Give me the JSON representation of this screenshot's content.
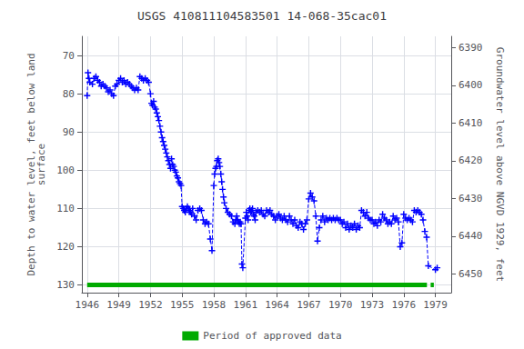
{
  "chart_data": {
    "type": "line",
    "title": "USGS 410811104583501 14-068-35cac01",
    "y_label": "Depth to water level, feet below land\nsurface",
    "y2_label": "Groundwater level above NGVD 1929, feet",
    "xlim": [
      1945.5,
      1980.5
    ],
    "xticks": [
      1946,
      1949,
      1952,
      1955,
      1958,
      1961,
      1964,
      1967,
      1970,
      1973,
      1976,
      1979
    ],
    "ylim": [
      132,
      65
    ],
    "yticks": [
      70,
      80,
      90,
      100,
      110,
      120,
      130
    ],
    "y2lim": [
      6455,
      6387
    ],
    "y2ticks": [
      6390,
      6400,
      6410,
      6420,
      6430,
      6440,
      6450
    ],
    "grid": true,
    "legend": "bottom",
    "series": [
      {
        "color": "#0000ff",
        "marker": "+",
        "line_style": "dashed",
        "x": [
          1946.0,
          1946.08,
          1946.17,
          1946.25,
          1946.5,
          1946.67,
          1946.83,
          1947.0,
          1947.17,
          1947.33,
          1947.5,
          1947.67,
          1947.83,
          1948.0,
          1948.17,
          1948.33,
          1948.5,
          1948.67,
          1948.83,
          1949.0,
          1949.17,
          1949.33,
          1949.5,
          1949.67,
          1949.83,
          1950.0,
          1950.17,
          1950.33,
          1950.5,
          1950.67,
          1950.83,
          1951.0,
          1951.17,
          1951.33,
          1951.5,
          1951.67,
          1951.83,
          1952.0,
          1952.1,
          1952.2,
          1952.3,
          1952.4,
          1952.5,
          1952.6,
          1952.7,
          1952.8,
          1952.9,
          1953.0,
          1953.1,
          1953.2,
          1953.3,
          1953.4,
          1953.5,
          1953.6,
          1953.7,
          1953.8,
          1953.9,
          1954.0,
          1954.1,
          1954.2,
          1954.3,
          1954.4,
          1954.5,
          1954.6,
          1954.7,
          1954.8,
          1954.9,
          1955.0,
          1955.1,
          1955.2,
          1955.3,
          1955.4,
          1955.5,
          1955.6,
          1955.7,
          1955.8,
          1955.9,
          1956.0,
          1956.17,
          1956.33,
          1956.5,
          1956.67,
          1956.83,
          1957.0,
          1957.17,
          1957.33,
          1957.5,
          1957.67,
          1957.83,
          1958.0,
          1958.08,
          1958.17,
          1958.25,
          1958.33,
          1958.42,
          1958.5,
          1958.58,
          1958.67,
          1958.75,
          1958.83,
          1958.92,
          1959.0,
          1959.17,
          1959.33,
          1959.5,
          1959.67,
          1959.83,
          1960.0,
          1960.08,
          1960.17,
          1960.25,
          1960.33,
          1960.42,
          1960.5,
          1960.58,
          1960.67,
          1960.75,
          1961.0,
          1961.08,
          1961.17,
          1961.25,
          1961.33,
          1961.42,
          1961.5,
          1961.58,
          1961.67,
          1961.75,
          1961.83,
          1961.92,
          1962.0,
          1962.17,
          1962.33,
          1962.5,
          1962.67,
          1962.83,
          1963.0,
          1963.17,
          1963.33,
          1963.5,
          1963.67,
          1963.83,
          1964.0,
          1964.17,
          1964.33,
          1964.5,
          1964.67,
          1964.83,
          1965.0,
          1965.17,
          1965.33,
          1965.5,
          1965.67,
          1965.83,
          1966.0,
          1966.17,
          1966.33,
          1966.5,
          1966.67,
          1966.83,
          1967.0,
          1967.17,
          1967.33,
          1967.5,
          1967.67,
          1967.83,
          1968.0,
          1968.17,
          1968.33,
          1968.5,
          1968.67,
          1968.83,
          1969.0,
          1969.17,
          1969.33,
          1969.5,
          1969.67,
          1969.83,
          1970.0,
          1970.17,
          1970.33,
          1970.5,
          1970.67,
          1970.83,
          1971.0,
          1971.17,
          1971.33,
          1971.5,
          1971.67,
          1971.83,
          1972.0,
          1972.17,
          1972.33,
          1972.5,
          1972.67,
          1972.83,
          1973.0,
          1973.17,
          1973.33,
          1973.5,
          1973.67,
          1973.83,
          1974.0,
          1974.17,
          1974.33,
          1974.5,
          1974.67,
          1974.83,
          1975.0,
          1975.17,
          1975.33,
          1975.5,
          1975.67,
          1975.83,
          1976.0,
          1976.17,
          1976.33,
          1976.5,
          1976.67,
          1976.83,
          1977.0,
          1977.17,
          1977.33,
          1977.5,
          1977.67,
          1977.83,
          1978.0,
          1978.17,
          1978.33,
          1979.0,
          1979.17
        ],
        "values": [
          80.5,
          74.5,
          76.0,
          77.0,
          77.5,
          76.0,
          75.5,
          76.5,
          77.0,
          78.0,
          77.5,
          78.0,
          78.5,
          79.5,
          79.0,
          80.0,
          80.5,
          78.0,
          77.5,
          76.5,
          76.0,
          77.0,
          76.5,
          77.5,
          77.0,
          77.5,
          78.0,
          78.5,
          79.0,
          78.5,
          79.0,
          75.5,
          76.0,
          76.5,
          76.0,
          76.5,
          77.0,
          80.0,
          82.5,
          83.0,
          82.0,
          83.5,
          84.0,
          85.0,
          86.0,
          87.0,
          88.5,
          90.0,
          91.5,
          92.5,
          93.5,
          94.5,
          95.5,
          96.5,
          97.5,
          98.5,
          99.5,
          97.0,
          98.5,
          99.0,
          100.0,
          100.5,
          101.5,
          102.0,
          103.0,
          103.5,
          104.0,
          109.5,
          110.0,
          110.5,
          111.0,
          110.0,
          109.5,
          110.0,
          110.5,
          111.0,
          111.5,
          110.0,
          112.0,
          113.0,
          110.5,
          110.0,
          110.5,
          113.0,
          114.0,
          113.5,
          114.0,
          118.0,
          121.0,
          104.0,
          101.0,
          99.5,
          99.0,
          97.5,
          97.0,
          98.0,
          99.0,
          101.0,
          103.0,
          105.0,
          107.0,
          108.5,
          110.0,
          111.0,
          111.5,
          112.0,
          113.5,
          114.0,
          113.0,
          112.0,
          113.0,
          113.5,
          114.0,
          113.5,
          114.0,
          124.5,
          125.5,
          112.5,
          111.0,
          112.0,
          113.0,
          110.5,
          110.0,
          111.0,
          110.5,
          110.0,
          111.5,
          112.0,
          113.0,
          111.0,
          110.5,
          111.0,
          110.5,
          111.5,
          112.0,
          110.5,
          111.0,
          110.5,
          111.5,
          112.0,
          113.0,
          112.0,
          111.5,
          112.5,
          113.0,
          112.0,
          113.0,
          113.5,
          112.0,
          113.0,
          114.0,
          113.0,
          114.5,
          115.0,
          113.5,
          114.0,
          115.5,
          114.0,
          113.0,
          107.5,
          106.0,
          107.0,
          108.0,
          112.0,
          118.5,
          115.0,
          113.0,
          112.0,
          113.5,
          112.5,
          113.0,
          112.5,
          113.0,
          112.5,
          113.0,
          112.5,
          113.0,
          113.0,
          114.0,
          113.5,
          115.0,
          114.0,
          115.5,
          114.5,
          115.0,
          114.0,
          115.5,
          114.5,
          115.0,
          110.5,
          111.0,
          112.0,
          111.0,
          112.5,
          113.0,
          113.0,
          114.0,
          113.5,
          114.5,
          113.0,
          113.5,
          111.5,
          112.5,
          113.0,
          114.0,
          113.5,
          114.0,
          112.0,
          113.0,
          112.5,
          113.5,
          120.0,
          119.0,
          111.5,
          112.5,
          113.0,
          112.5,
          113.0,
          113.5,
          110.5,
          111.0,
          110.5,
          111.0,
          111.5,
          113.0,
          116.0,
          117.5,
          125.0,
          126.0,
          125.5
        ]
      },
      {
        "name": "Period of approved data",
        "color": "#00aa00",
        "line_style": "solid",
        "x": [
          1946.0,
          1978.2,
          null,
          1978.55,
          1978.85
        ],
        "values": [
          130,
          130,
          null,
          130,
          130
        ]
      }
    ]
  }
}
